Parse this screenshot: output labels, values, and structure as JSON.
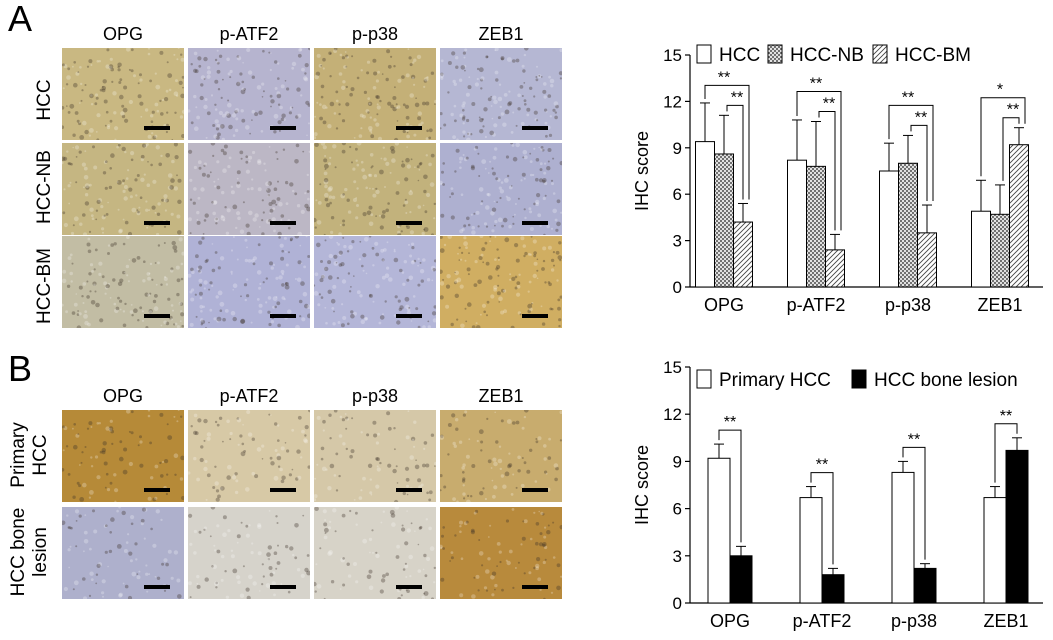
{
  "panel_a": {
    "letter": "A",
    "columns": [
      "OPG",
      "p-ATF2",
      "p-p38",
      "ZEB1"
    ],
    "rows": [
      "HCC",
      "HCC-NB",
      "HCC-BM"
    ],
    "tile_colors": [
      [
        "#c9b882",
        "#b6b4cf",
        "#c4b077",
        "#b5b7d3"
      ],
      [
        "#c5b682",
        "#bcb7c5",
        "#c2b27c",
        "#aeb0d0"
      ],
      [
        "#c2bda4",
        "#b0b2d6",
        "#b4b6d8",
        "#d0ae62"
      ]
    ]
  },
  "panel_b": {
    "letter": "B",
    "columns": [
      "OPG",
      "p-ATF2",
      "p-p38",
      "ZEB1"
    ],
    "rows": [
      "Primary\nHCC",
      "HCC bone\nlesion"
    ],
    "tile_colors": [
      [
        "#b68a38",
        "#d7c9a6",
        "#d5c8a8",
        "#c8ac6e"
      ],
      [
        "#aeb0cc",
        "#d6d3cb",
        "#d7d3c8",
        "#b88a3c"
      ]
    ]
  },
  "chart_data": [
    {
      "type": "bar",
      "categories": [
        "OPG",
        "p-ATF2",
        "p-p38",
        "ZEB1"
      ],
      "ylabel": "IHC score",
      "ylim": [
        0,
        15
      ],
      "yticks": [
        "0",
        "3",
        "6",
        "9",
        "12",
        "15"
      ],
      "legend_position": "top",
      "series": [
        {
          "name": "HCC",
          "pattern": "white",
          "values": [
            9.4,
            8.2,
            7.5,
            4.9
          ],
          "errors": [
            2.5,
            2.6,
            1.8,
            2.0
          ]
        },
        {
          "name": "HCC-NB",
          "pattern": "crosshatch",
          "values": [
            8.6,
            7.8,
            8.0,
            4.7
          ],
          "errors": [
            2.5,
            2.9,
            1.8,
            1.9
          ]
        },
        {
          "name": "HCC-BM",
          "pattern": "diagonal",
          "values": [
            4.2,
            2.4,
            3.5,
            9.2
          ],
          "errors": [
            1.2,
            1.0,
            1.8,
            1.1
          ]
        }
      ],
      "significance": [
        {
          "category": "OPG",
          "outer": "**",
          "inner": "**"
        },
        {
          "category": "p-ATF2",
          "outer": "**",
          "inner": "**"
        },
        {
          "category": "p-p38",
          "outer": "**",
          "inner": "**"
        },
        {
          "category": "ZEB1",
          "outer": "*",
          "inner": "**"
        }
      ]
    },
    {
      "type": "bar",
      "categories": [
        "OPG",
        "p-ATF2",
        "p-p38",
        "ZEB1"
      ],
      "ylabel": "IHC score",
      "ylim": [
        0,
        15
      ],
      "yticks": [
        "0",
        "3",
        "6",
        "9",
        "12",
        "15"
      ],
      "legend_position": "top",
      "series": [
        {
          "name": "Primary HCC",
          "color": "#ffffff",
          "values": [
            9.2,
            6.7,
            8.3,
            6.7
          ],
          "errors": [
            0.9,
            0.7,
            0.7,
            0.7
          ]
        },
        {
          "name": "HCC bone lesion",
          "color": "#000000",
          "values": [
            3.0,
            1.8,
            2.2,
            9.7
          ],
          "errors": [
            0.6,
            0.4,
            0.3,
            0.8
          ]
        }
      ],
      "significance": [
        {
          "category": "OPG",
          "label": "**"
        },
        {
          "category": "p-ATF2",
          "label": "**"
        },
        {
          "category": "p-p38",
          "label": "**"
        },
        {
          "category": "ZEB1",
          "label": "**"
        }
      ]
    }
  ]
}
